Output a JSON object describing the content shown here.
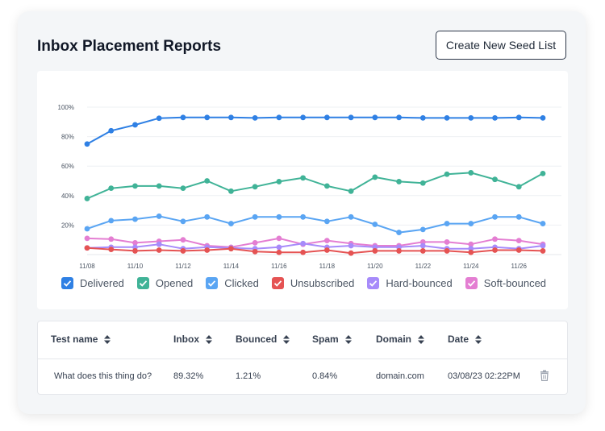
{
  "header": {
    "title": "Inbox Placement Reports",
    "create_button_label": "Create New Seed List"
  },
  "chart_data": {
    "type": "line",
    "x": [
      "11/08",
      "11/09",
      "11/10",
      "11/11",
      "11/12",
      "11/13",
      "11/14",
      "11/15",
      "11/16",
      "11/17",
      "11/18",
      "11/19",
      "11/20",
      "11/21",
      "11/22",
      "11/23",
      "11/24",
      "11/25",
      "11/26",
      "11/27"
    ],
    "x_tick_labels": [
      "11/08",
      "11/10",
      "11/12",
      "11/14",
      "11/16",
      "11/18",
      "11/20",
      "11/22",
      "11/24",
      "11/26"
    ],
    "y_tick_labels": [
      "100%",
      "80%",
      "60%",
      "40%",
      "20%"
    ],
    "ylim": [
      0,
      100
    ],
    "grid": true,
    "legend_position": "bottom",
    "series": [
      {
        "name": "Delivered",
        "color": "#2f80e4",
        "values": [
          75,
          84,
          88,
          92.5,
          93,
          93,
          93,
          92.7,
          93,
          93,
          93,
          93,
          93,
          93,
          92.7,
          92.7,
          92.7,
          92.7,
          93,
          92.7
        ]
      },
      {
        "name": "Opened",
        "color": "#40b397",
        "values": [
          38,
          45,
          46.5,
          46.5,
          45,
          50,
          43,
          46,
          49.5,
          52,
          46.5,
          43,
          52.5,
          49.5,
          48.5,
          54.5,
          55.5,
          51,
          46,
          55
        ]
      },
      {
        "name": "Clicked",
        "color": "#5aa5f3",
        "values": [
          17.5,
          23,
          24,
          26,
          22.5,
          25.5,
          21,
          25.5,
          25.5,
          25.5,
          22.5,
          25.5,
          20.5,
          15,
          17,
          21,
          21,
          25.5,
          25.5,
          21
        ]
      },
      {
        "name": "Unsubscribed",
        "color": "#e55353",
        "values": [
          4.5,
          3.5,
          2.5,
          3,
          2.5,
          3,
          4,
          2,
          1.5,
          1.5,
          3,
          1,
          2.5,
          2.5,
          2.5,
          2.5,
          1.5,
          3,
          3,
          2.5
        ]
      },
      {
        "name": "Hard-bounced",
        "color": "#a78bfa",
        "values": [
          4.5,
          5,
          5,
          7,
          4,
          5,
          4.5,
          4,
          5,
          7.5,
          5,
          6,
          5,
          5,
          6,
          4,
          4,
          5,
          4,
          6
        ]
      },
      {
        "name": "Soft-bounced",
        "color": "#e47ed2",
        "values": [
          11,
          10.5,
          8,
          9,
          10,
          6,
          5,
          8,
          11,
          7,
          9.5,
          7.5,
          6,
          6,
          8.5,
          8.5,
          7,
          10.5,
          9.5,
          7
        ]
      }
    ]
  },
  "legend": {
    "items": [
      {
        "label": "Delivered",
        "color": "#2f80e4"
      },
      {
        "label": "Opened",
        "color": "#40b397"
      },
      {
        "label": "Clicked",
        "color": "#5aa5f3"
      },
      {
        "label": "Unsubscribed",
        "color": "#e55353"
      },
      {
        "label": "Hard-bounced",
        "color": "#a78bfa"
      },
      {
        "label": "Soft-bounced",
        "color": "#e47ed2"
      }
    ]
  },
  "table": {
    "columns": [
      "Test name",
      "Inbox",
      "Bounced",
      "Spam",
      "Domain",
      "Date"
    ],
    "rows": [
      {
        "test_name": "What does this thing do?",
        "inbox": "89.32%",
        "bounced": "1.21%",
        "spam": "0.84%",
        "domain": "domain.com",
        "date": "03/08/23 02:22PM",
        "action_icon": "trash-icon"
      }
    ]
  }
}
